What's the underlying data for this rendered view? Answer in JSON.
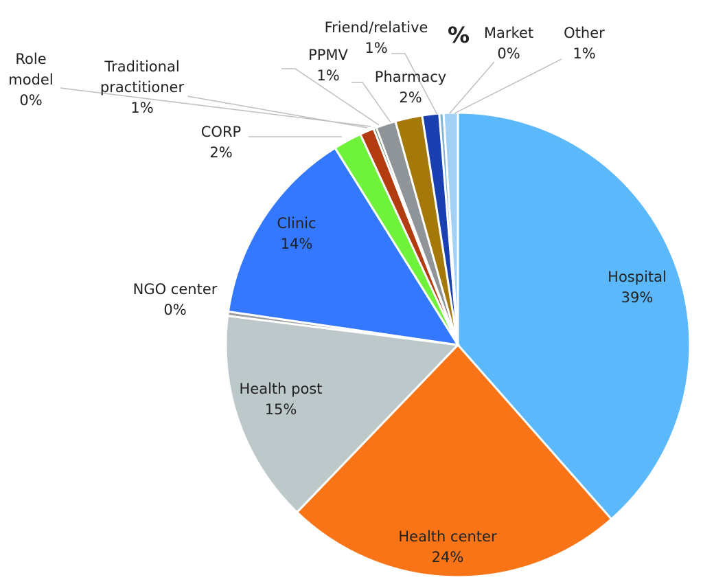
{
  "chart_data": {
    "type": "pie",
    "title": "%",
    "slices": [
      {
        "name": "Hospital",
        "value": 39,
        "value_label": "39%",
        "color": "#5BB8FA"
      },
      {
        "name": "Health center",
        "value": 24,
        "value_label": "24%",
        "color": "#F97417"
      },
      {
        "name": "Health post",
        "value": 15,
        "value_label": "15%",
        "color": "#BDC8CA"
      },
      {
        "name": "NGO center",
        "value": 0.3,
        "value_label": "0%",
        "color": "#9E9E9E"
      },
      {
        "name": "Clinic",
        "value": 14,
        "value_label": "14%",
        "color": "#3478FF"
      },
      {
        "name": "CORP",
        "value": 2,
        "value_label": "2%",
        "color": "#6EF23A"
      },
      {
        "name": "Traditional practitioner",
        "value": 1,
        "value_label": "1%",
        "color": "#B33B10"
      },
      {
        "name": "Role model",
        "value": 0.2,
        "value_label": "0%",
        "color": "#4A6E3A"
      },
      {
        "name": "PPMV",
        "value": 1.4,
        "value_label": "1%",
        "color": "#8E9498"
      },
      {
        "name": "Pharmacy",
        "value": 1.9,
        "value_label": "2%",
        "color": "#A5780A"
      },
      {
        "name": "Friend/relative",
        "value": 1.2,
        "value_label": "1%",
        "color": "#1A3FB0"
      },
      {
        "name": "Market",
        "value": 0.3,
        "value_label": "0%",
        "color": "#7FB3D5"
      },
      {
        "name": "Other",
        "value": 1,
        "value_label": "1%",
        "color": "#A3D0F5"
      }
    ]
  }
}
